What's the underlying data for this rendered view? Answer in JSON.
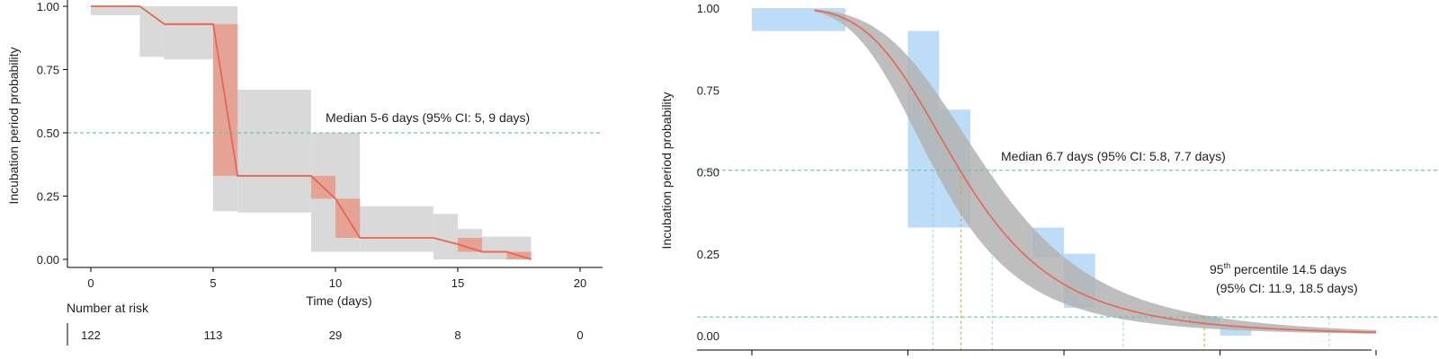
{
  "chart_data": [
    {
      "type": "line",
      "ylabel": "Incubation period probability",
      "xlabel": "Time (days)",
      "xlim": [
        0,
        20
      ],
      "ylim": [
        0,
        1
      ],
      "x_ticks": [
        "0",
        "5",
        "10",
        "15",
        "20"
      ],
      "y_ticks": [
        "0.00",
        "0.25",
        "0.50",
        "0.75",
        "1.00"
      ],
      "annotation": "Median 5-6 days (95% CI: 5, 9 days)",
      "median_line_y": 0.5,
      "risk_table": {
        "title": "Number at risk",
        "at_times": [
          0,
          5,
          10,
          15,
          20
        ],
        "values": [
          "122",
          "113",
          "29",
          "8",
          "0"
        ]
      },
      "series": [
        {
          "kind": "step",
          "points": [
            [
              0,
              1.0
            ],
            [
              2,
              1.0
            ],
            [
              3,
              0.93
            ],
            [
              5,
              0.93
            ],
            [
              6,
              0.33
            ],
            [
              9,
              0.33
            ],
            [
              10,
              0.24
            ],
            [
              11,
              0.085
            ],
            [
              14,
              0.085
            ],
            [
              15,
              0.06
            ],
            [
              16,
              0.03
            ],
            [
              17,
              0.03
            ],
            [
              18,
              0.0
            ]
          ]
        }
      ],
      "ci_outer": [
        [
          0,
          2,
          0.965,
          1.0
        ],
        [
          2,
          3,
          0.8,
          1.0
        ],
        [
          3,
          5,
          0.79,
          1.0
        ],
        [
          5,
          6,
          0.19,
          1.0
        ],
        [
          6,
          9,
          0.185,
          0.67
        ],
        [
          9,
          11,
          0.03,
          0.5
        ],
        [
          11,
          14,
          0.03,
          0.21
        ],
        [
          14,
          15,
          0.0,
          0.18
        ],
        [
          15,
          16,
          0.0,
          0.12
        ],
        [
          16,
          18,
          0.0,
          0.09
        ]
      ],
      "ci_inner": [
        [
          3,
          5,
          0.93,
          0.93
        ],
        [
          5,
          6,
          0.33,
          0.93
        ],
        [
          9,
          10,
          0.24,
          0.33
        ],
        [
          10,
          11,
          0.085,
          0.24
        ],
        [
          15,
          16,
          0.03,
          0.085
        ],
        [
          17,
          18,
          0.0,
          0.03
        ]
      ],
      "colors": {
        "line": "#e8664e",
        "ci_outer": "#d9d9d9",
        "ci_inner": "#e5a395",
        "median": "#63c9a0"
      }
    },
    {
      "type": "line",
      "ylabel": "Incubation period probability",
      "xlim": [
        0,
        20
      ],
      "ylim": [
        0,
        1
      ],
      "y_ticks": [
        "0.00",
        "0.25",
        "0.50",
        "0.75",
        "1.00"
      ],
      "annotation_median": "Median 6.7 days (95% CI: 5.8, 7.7 days)",
      "annotation_p95_prefix": "95",
      "annotation_p95_sup": "th",
      "annotation_p95_rest": " percentile 14.5 days",
      "annotation_p95_ci": "(95% CI: 11.9, 18.5 days)",
      "median_line_y": 0.505,
      "p95_line_y": 0.057,
      "median_x": 6.7,
      "median_ci": [
        5.8,
        7.7
      ],
      "p95_x": 14.5,
      "p95_ci": [
        11.9,
        18.5
      ],
      "curve": {
        "median": 6.7,
        "shape": 4.2
      },
      "band": {
        "lower_median": 5.9,
        "upper_median": 7.6
      },
      "km_boxes": [
        [
          0,
          3,
          0.93,
          1.0
        ],
        [
          5,
          6,
          0.33,
          0.93
        ],
        [
          6,
          7,
          0.33,
          0.69
        ],
        [
          9,
          10,
          0.24,
          0.33
        ],
        [
          10,
          11,
          0.085,
          0.25
        ],
        [
          14,
          15,
          0.03,
          0.06
        ],
        [
          15,
          16,
          0.0,
          0.03
        ]
      ],
      "colors": {
        "line": "#e8664e",
        "band": "#b3b3b3",
        "boxes": "#bcdcf7",
        "median": "#63c9a0",
        "p95": "#f0a030",
        "vline": "#8fd3dc"
      }
    }
  ]
}
